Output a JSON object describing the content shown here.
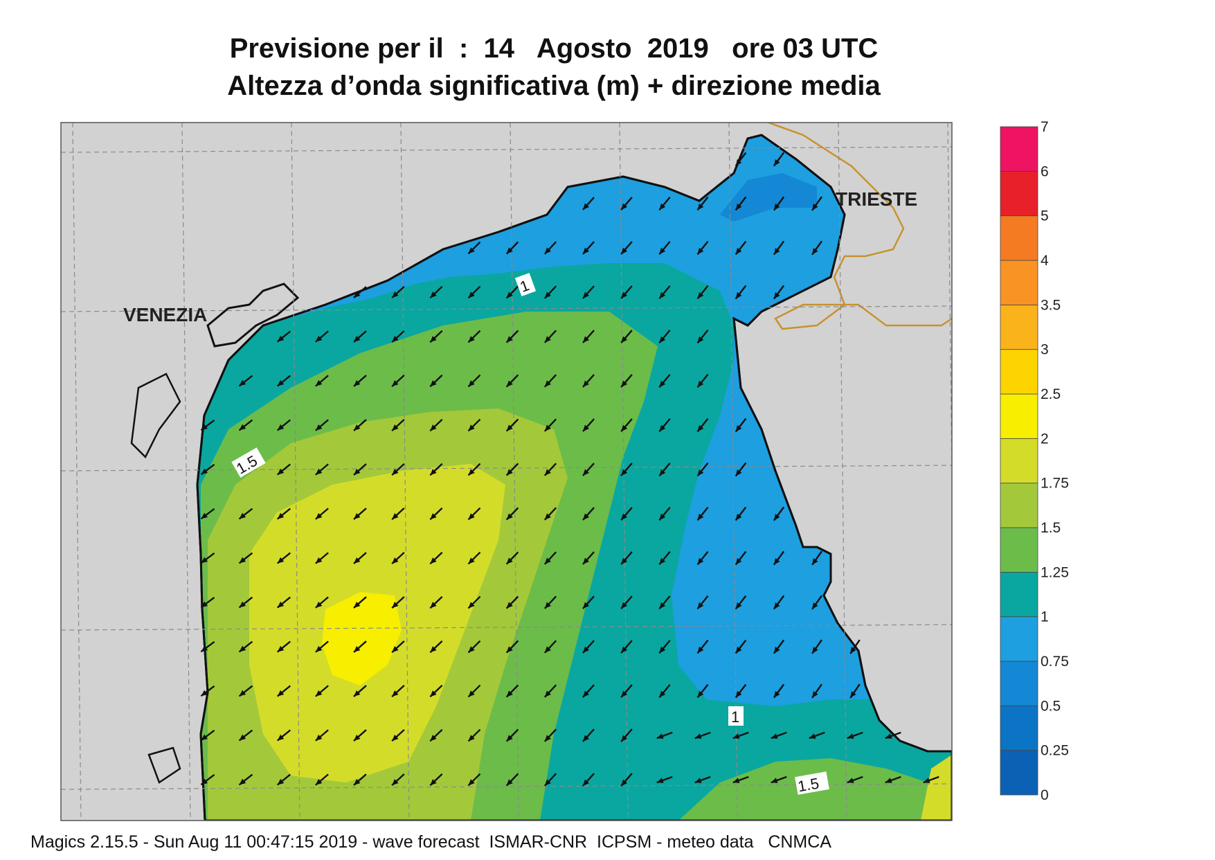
{
  "title_line1": "Previsione per il  :  14   Agosto  2019   ore 03 UTC",
  "title_line2": "Altezza d’onda significativa (m) + direzione media",
  "cities": [
    {
      "name": "VENEZIA"
    },
    {
      "name": "TRIESTE"
    }
  ],
  "colorbar": {
    "levels": [
      "0",
      "0.25",
      "0.5",
      "0.75",
      "1",
      "1.25",
      "1.5",
      "1.75",
      "2",
      "2.5",
      "3",
      "3.5",
      "4",
      "5",
      "6",
      "7"
    ],
    "colors": [
      "#0b62b5",
      "#0c74c4",
      "#1488d4",
      "#1d9fe0",
      "#0aa7a0",
      "#6cbc4a",
      "#a3c93a",
      "#d4dc2a",
      "#f7ee00",
      "#fdd400",
      "#fbb31b",
      "#f99424",
      "#f47b22",
      "#e8202a",
      "#ee1463"
    ]
  },
  "contour_labels": [
    "1",
    "1.5",
    "1",
    "1.5"
  ],
  "footer": "Magics 2.15.5 - Sun Aug 11 00:47:15 2019 - wave forecast  ISMAR-CNR  ICPSM - meteo data   CNMCA",
  "land_color": "#d2d2d2",
  "border_color": "#c8922c"
}
